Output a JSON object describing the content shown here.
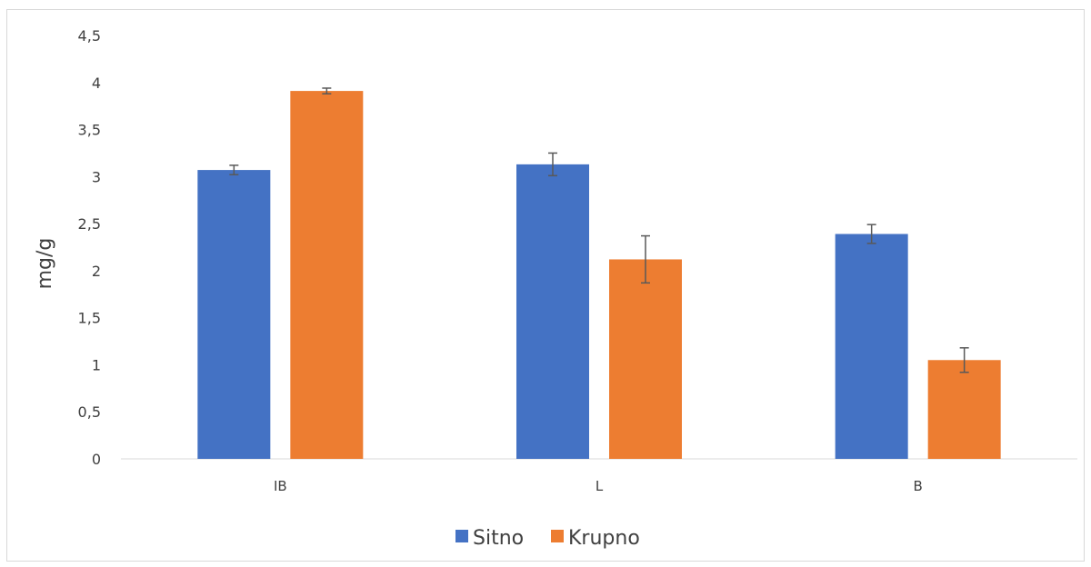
{
  "chart_data": {
    "type": "bar",
    "title": "",
    "xlabel": "",
    "ylabel": "mg/g",
    "categories": [
      "IB",
      "L",
      "B"
    ],
    "series": [
      {
        "name": "Sitno",
        "color": "#4472C4",
        "values": [
          3.07,
          3.13,
          2.39
        ],
        "errors": [
          0.05,
          0.12,
          0.1
        ]
      },
      {
        "name": "Krupno",
        "color": "#ED7D31",
        "values": [
          3.91,
          2.12,
          1.05
        ],
        "errors": [
          0.03,
          0.25,
          0.13
        ]
      }
    ],
    "ylim": [
      0,
      4.5
    ],
    "yticks": [
      "0",
      "0,5",
      "1",
      "1,5",
      "2",
      "2,5",
      "3",
      "3,5",
      "4",
      "4,5"
    ],
    "grid": false,
    "legend": "bottom"
  }
}
